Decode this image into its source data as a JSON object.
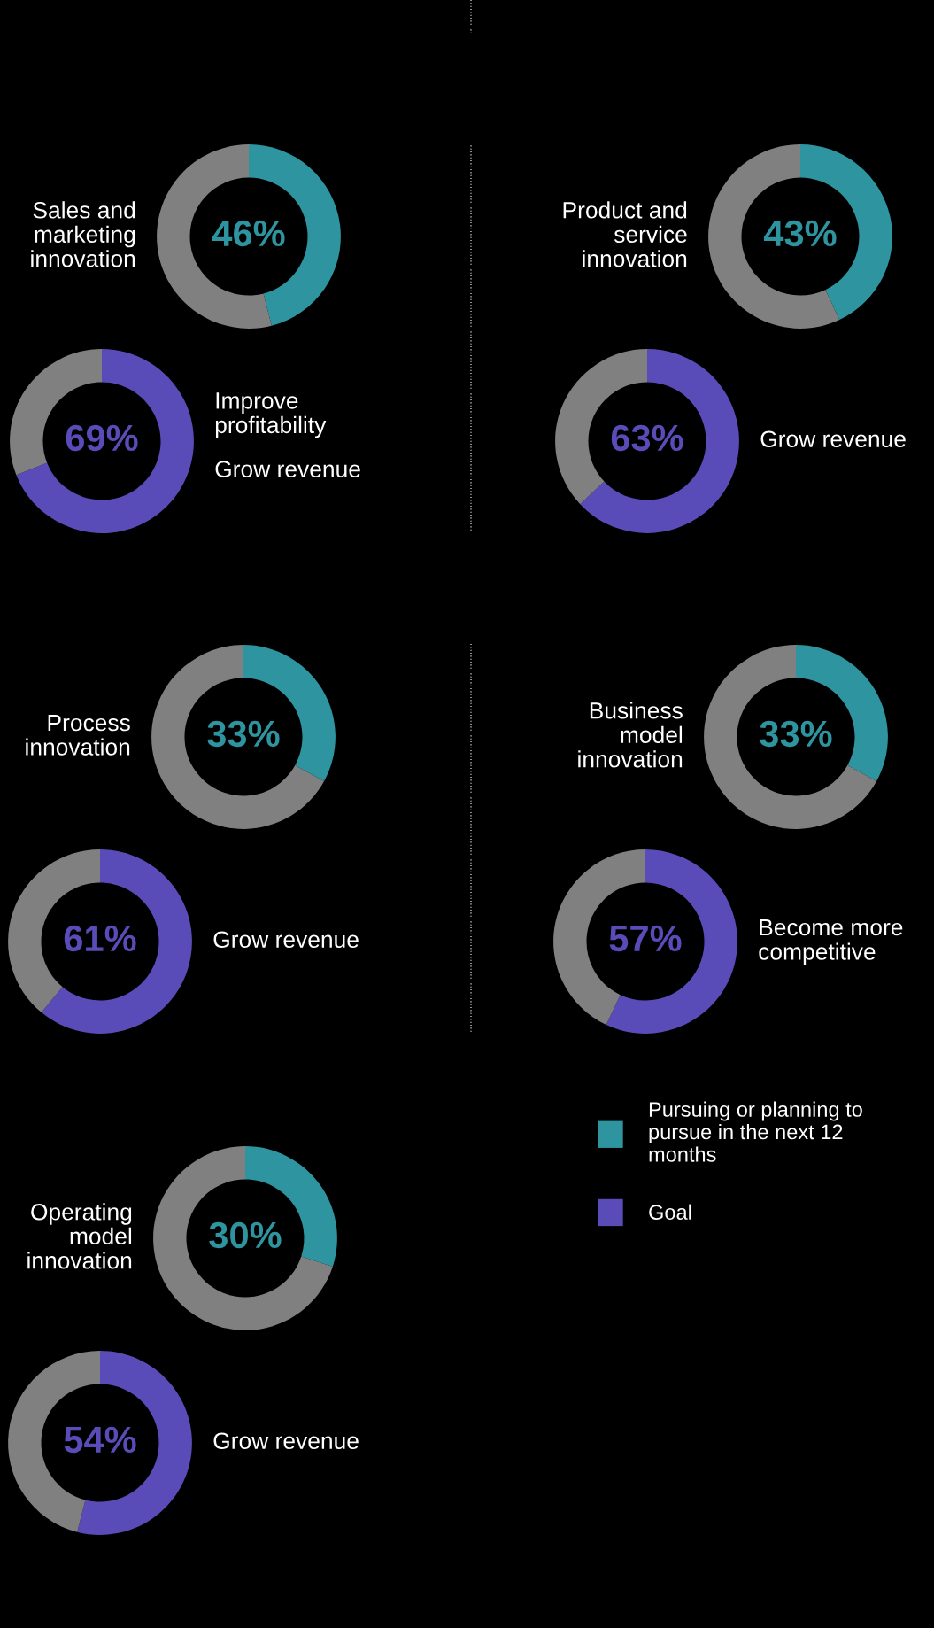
{
  "chart_data": [
    {
      "type": "donut",
      "title": "Sales and marketing innovation",
      "categories": [
        null,
        null
      ],
      "values": [
        46,
        54
      ],
      "colors": [
        "#2e94a0",
        "#808080"
      ],
      "value_labels": [
        "46%",
        null
      ]
    },
    {
      "type": "donut",
      "title": "Improve profitability",
      "annotations": [
        "Grow revenue"
      ],
      "categories": [
        null,
        null
      ],
      "values": [
        69,
        31
      ],
      "colors": [
        "#5a4cb8",
        "#808080"
      ],
      "value_labels": [
        "69%",
        null
      ]
    },
    {
      "type": "donut",
      "title": "Product and service innovation",
      "categories": [
        null,
        null
      ],
      "values": [
        43,
        57
      ],
      "colors": [
        "#2e94a0",
        "#808080"
      ],
      "value_labels": [
        "43%",
        null
      ]
    },
    {
      "type": "donut",
      "title": "Grow revenue",
      "categories": [
        null,
        null
      ],
      "values": [
        63,
        37
      ],
      "colors": [
        "#5a4cb8",
        "#808080"
      ],
      "value_labels": [
        "63%",
        null
      ]
    },
    {
      "type": "donut",
      "title": "Process innovation",
      "categories": [
        null,
        null
      ],
      "values": [
        33,
        67
      ],
      "colors": [
        "#2e94a0",
        "#808080"
      ],
      "value_labels": [
        "33%",
        null
      ]
    },
    {
      "type": "donut",
      "title": "Grow revenue",
      "categories": [
        null,
        null
      ],
      "values": [
        61,
        39
      ],
      "colors": [
        "#5a4cb8",
        "#808080"
      ],
      "value_labels": [
        "61%",
        null
      ]
    },
    {
      "type": "donut",
      "title": "Business model innovation",
      "categories": [
        null,
        null
      ],
      "values": [
        33,
        67
      ],
      "colors": [
        "#2e94a0",
        "#808080"
      ],
      "value_labels": [
        "33%",
        null
      ]
    },
    {
      "type": "donut",
      "title": "Become more competitive",
      "categories": [
        null,
        null
      ],
      "values": [
        57,
        43
      ],
      "colors": [
        "#5a4cb8",
        "#808080"
      ],
      "value_labels": [
        "57%",
        null
      ]
    },
    {
      "type": "donut",
      "title": "Operating model innovation",
      "categories": [
        "Pursuing or planning to pursue in the next 12 months",
        null
      ],
      "values": [
        30,
        70
      ],
      "colors": [
        "#2e94a0",
        "#808080"
      ],
      "value_labels": [
        "30%",
        null
      ],
      "legend": "right"
    },
    {
      "type": "donut",
      "title": "Grow revenue",
      "categories": [
        "Goal",
        null
      ],
      "values": [
        54,
        46
      ],
      "colors": [
        "#5a4cb8",
        "#808080"
      ],
      "value_labels": [
        "54%",
        null
      ],
      "legend": "right"
    }
  ]
}
